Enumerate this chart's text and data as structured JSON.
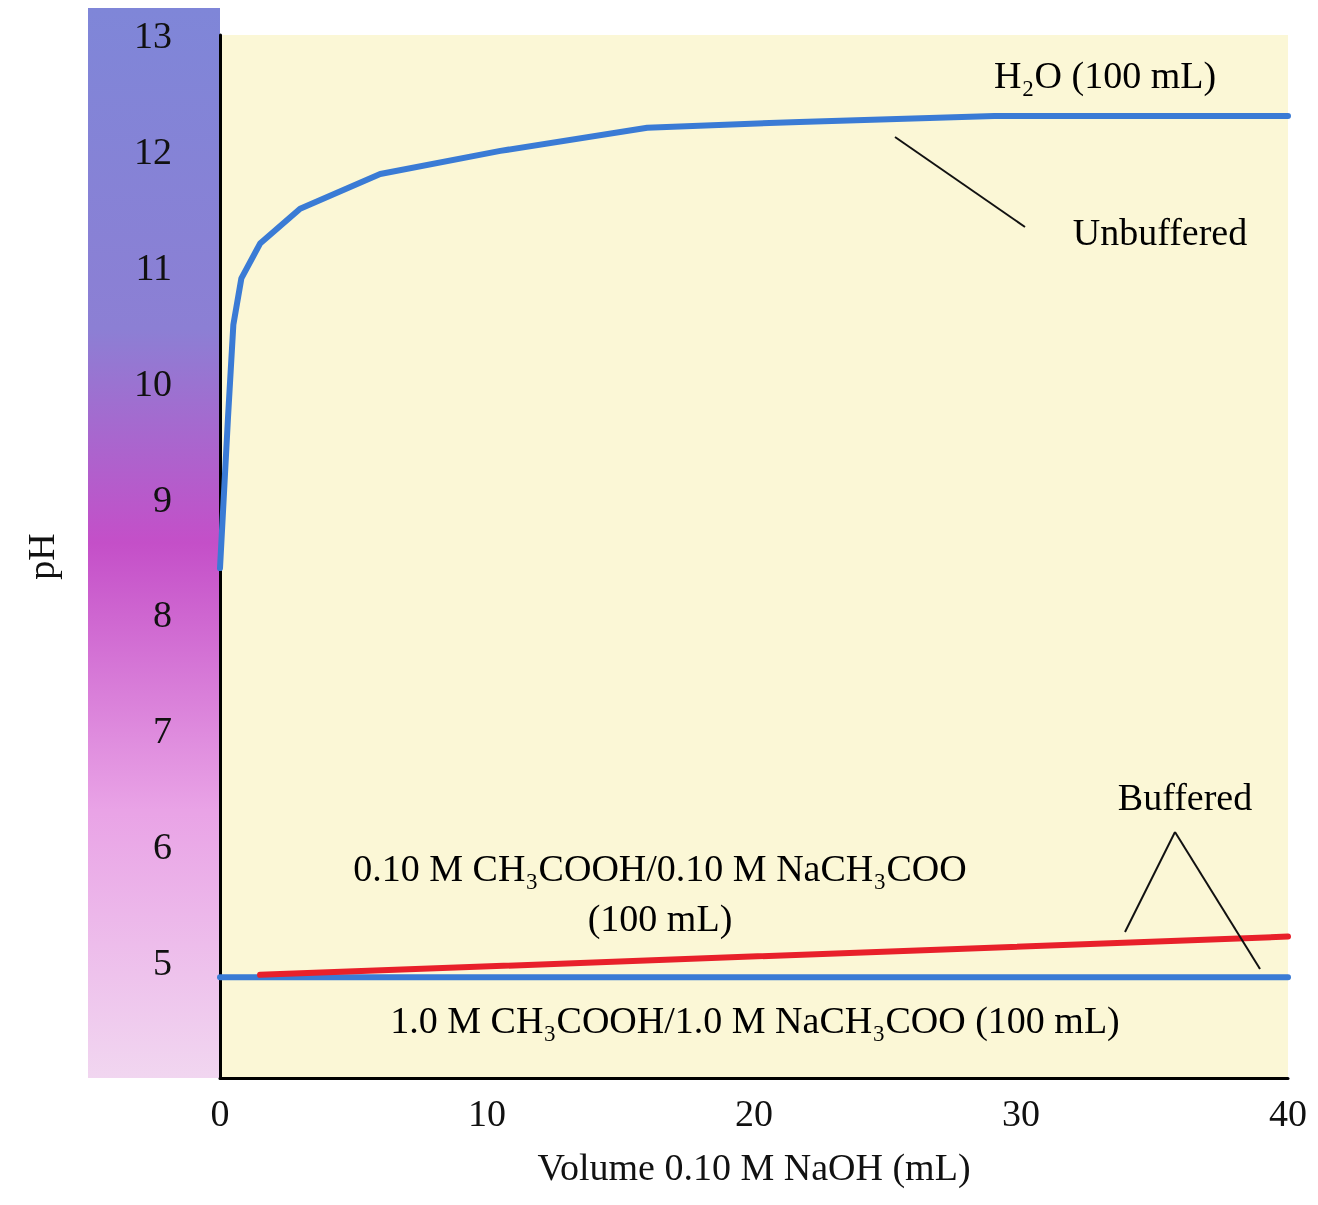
{
  "chart_data": {
    "type": "line",
    "xlabel": "Volume 0.10 M NaOH (mL)",
    "ylabel": "pH",
    "xlim": [
      0,
      40
    ],
    "xticks": [
      0,
      10,
      20,
      30,
      40
    ],
    "ylim": [
      4,
      13
    ],
    "yticks": [
      5,
      6,
      7,
      8,
      9,
      10,
      11,
      12,
      13
    ],
    "grid": false,
    "marker": "none",
    "line_style": "solid",
    "series": [
      {
        "color": "#3a7bd5",
        "x": [
          0,
          0.3,
          0.5,
          0.8,
          1.5,
          3,
          6,
          10.5,
          16,
          21.7,
          29,
          40
        ],
        "values": [
          8.4,
          9.7,
          10.5,
          10.9,
          11.2,
          11.5,
          11.8,
          12.0,
          12.2,
          12.25,
          12.3,
          12.3
        ]
      },
      {
        "color": "#e8202a",
        "x": [
          1.5,
          40
        ],
        "values": [
          4.89,
          5.22
        ]
      },
      {
        "color": "#3a7bd5",
        "x": [
          0,
          40
        ],
        "values": [
          4.87,
          4.87
        ]
      }
    ],
    "annotations": [
      "H₂O (100 mL)",
      "Unbuffered",
      "Buffered",
      "0.10 M CH₃COOH/0.10 M NaCH₃COO\n(100 mL)",
      "1.0 M CH₃COOH/1.0 M NaCH₃COO (100 mL)"
    ]
  }
}
